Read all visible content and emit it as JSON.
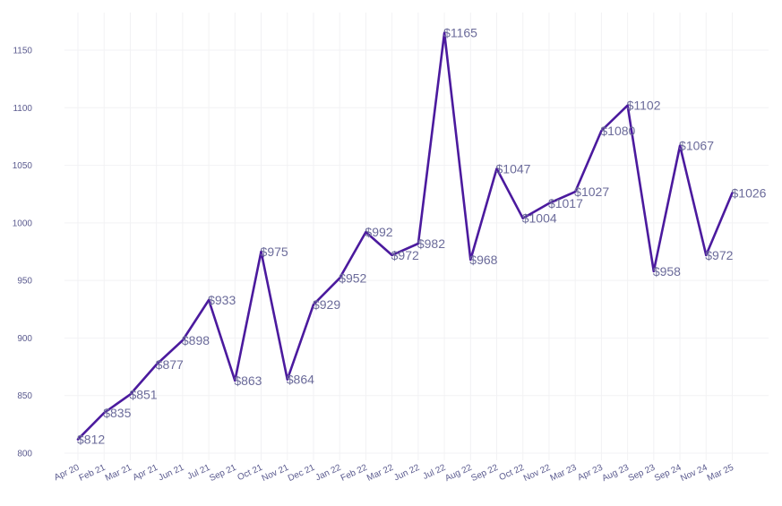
{
  "chart_data": {
    "type": "line",
    "title": "",
    "xlabel": "",
    "ylabel": "",
    "grid": true,
    "line_color": "#4b1a9e",
    "label_color": "#6b6b9a",
    "ylim": [
      800,
      1175
    ],
    "yticks": [
      800,
      850,
      900,
      950,
      1000,
      1050,
      1100,
      1150
    ],
    "categories": [
      "Apr 20",
      "Feb 21",
      "Mar 21",
      "Apr 21",
      "Jun 21",
      "Jul 21",
      "Sep 21",
      "Oct 21",
      "Nov 21",
      "Dec 21",
      "Jan 22",
      "Feb 22",
      "Mar 22",
      "Jun 22",
      "Jul 22",
      "Aug 22",
      "Sep 22",
      "Oct 22",
      "Nov 22",
      "Mar 23",
      "Apr 23",
      "Aug 23",
      "Sep 23",
      "Sep 24",
      "Nov 24",
      "Mar 25"
    ],
    "values": [
      812,
      835,
      851,
      877,
      898,
      933,
      863,
      975,
      864,
      929,
      952,
      992,
      972,
      982,
      1165,
      968,
      1047,
      1004,
      1017,
      1027,
      1080,
      1102,
      958,
      1067,
      972,
      1026
    ],
    "labels": [
      "$812",
      "$835",
      "$851",
      "$877",
      "$898",
      "$933",
      "$863",
      "$975",
      "$864",
      "$929",
      "$952",
      "$992",
      "$972",
      "$982",
      "$1165",
      "$968",
      "$1047",
      "$1004",
      "$1017",
      "$1027",
      "$1080",
      "$1102",
      "$958",
      "$1067",
      "$972",
      "$1026"
    ]
  }
}
